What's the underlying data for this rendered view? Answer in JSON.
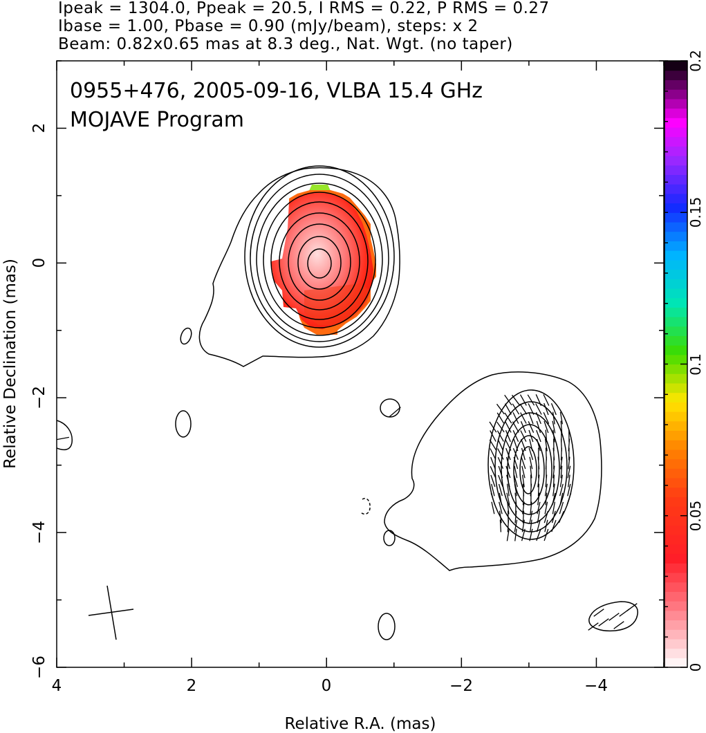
{
  "header": {
    "line1": "Ipeak = 1304.0, Ppeak = 20.5, I RMS = 0.22, P RMS = 0.27",
    "line2": "Ibase = 1.00, Pbase = 0.90 (mJy/beam), steps: x 2",
    "line3": "Beam: 0.82x0.65 mas at 8.3 deg., Nat. Wgt. (no taper)"
  },
  "chart_data": {
    "type": "heatmap",
    "title": "0955+476, 2005-09-16, VLBA 15.4 GHz",
    "subtitle": "MOJAVE Program",
    "xlabel": "Relative R.A. (mas)",
    "ylabel": "Relative Declination (mas)",
    "xlim": [
      4,
      -5
    ],
    "ylim": [
      -6,
      3
    ],
    "x_ticks": [
      4,
      2,
      0,
      -2,
      -4
    ],
    "x_tick_labels": [
      "4",
      "2",
      "0",
      "−2",
      "−4"
    ],
    "y_ticks": [
      2,
      0,
      -2,
      -4,
      -6
    ],
    "y_tick_labels": [
      "2",
      "0",
      "−2",
      "−4",
      "−6"
    ],
    "colorbar": {
      "range": [
        0,
        0.2
      ],
      "ticks": [
        0,
        0.05,
        0.1,
        0.15,
        0.2
      ],
      "tick_labels": [
        "0",
        "0.05",
        "0.1",
        "0.15",
        "0.2"
      ]
    },
    "contour_levels_mJy_beam": [
      1,
      2,
      4,
      8,
      16,
      32,
      64,
      128,
      256,
      512,
      1024
    ],
    "core": {
      "ra": 0.1,
      "dec": 0.05
    },
    "jet_component": {
      "ra": -3.0,
      "dec": -3.05
    },
    "beam": {
      "major": 0.82,
      "minor": 0.65,
      "pa_deg": 8.3
    },
    "colors": {
      "axis": "#000000",
      "contour": "#000000"
    }
  }
}
